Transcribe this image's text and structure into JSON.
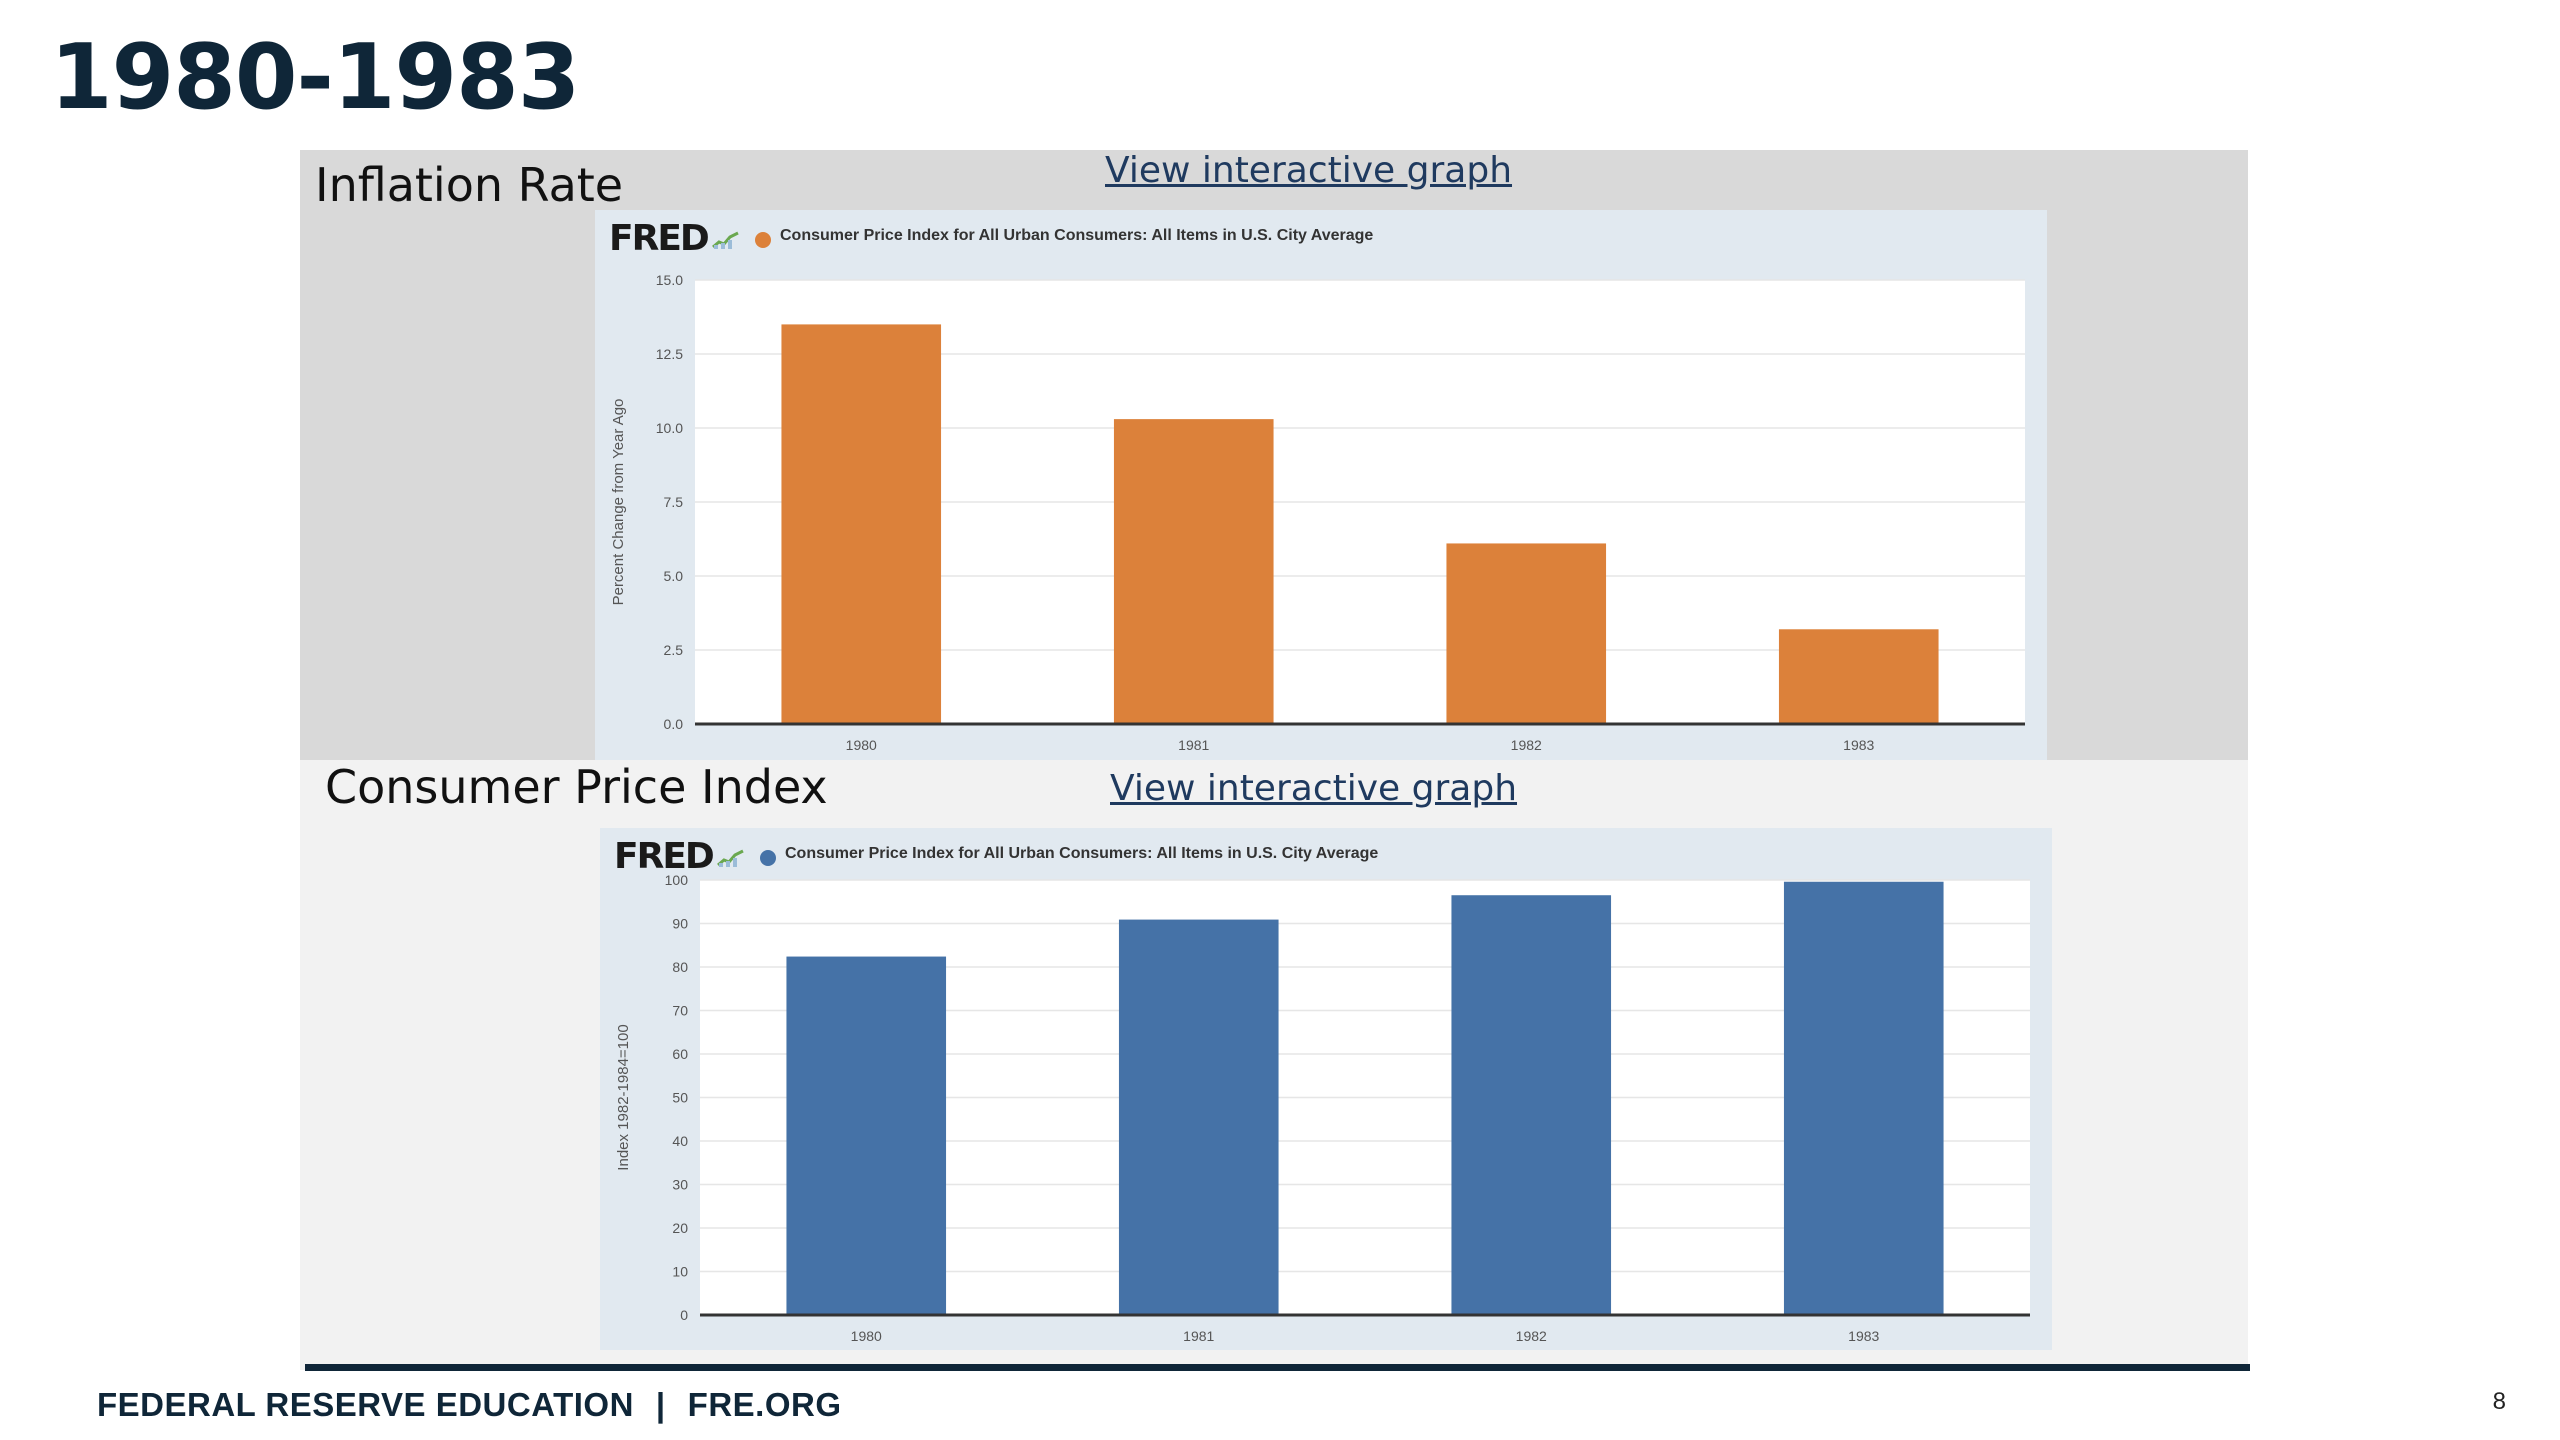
{
  "slide": {
    "title": "1980-1983",
    "page_number": "8"
  },
  "footer": {
    "org": "FEDERAL RESERVE EDUCATION",
    "separator": "|",
    "site": "FRE.ORG"
  },
  "panels": {
    "inflation": {
      "label": "Inflation Rate",
      "link": "View interactive graph"
    },
    "cpi": {
      "label": "Consumer Price Index",
      "link": "View interactive graph"
    }
  },
  "fred": {
    "logo": "FRED"
  },
  "colors": {
    "orange": "#dc813a",
    "blue": "#4572a7",
    "navy": "#0f2638"
  },
  "chart_data": [
    {
      "type": "bar",
      "title": "Consumer Price Index for All Urban Consumers: All Items in U.S. City Average",
      "ylabel": "Percent Change from Year Ago",
      "categories": [
        "1980",
        "1981",
        "1982",
        "1983"
      ],
      "values": [
        13.5,
        10.3,
        6.1,
        3.2
      ],
      "ylim": [
        0,
        15
      ],
      "yticks": [
        "0.0",
        "2.5",
        "5.0",
        "7.5",
        "10.0",
        "12.5",
        "15.0"
      ],
      "color": "#dc813a",
      "grid": true
    },
    {
      "type": "bar",
      "title": "Consumer Price Index for All Urban Consumers: All Items in U.S. City Average",
      "ylabel": "Index 1982-1984=100",
      "categories": [
        "1980",
        "1981",
        "1982",
        "1983"
      ],
      "values": [
        82.4,
        90.9,
        96.5,
        99.6
      ],
      "ylim": [
        0,
        100
      ],
      "yticks": [
        "0",
        "10",
        "20",
        "30",
        "40",
        "50",
        "60",
        "70",
        "80",
        "90",
        "100"
      ],
      "color": "#4572a7",
      "grid": true
    }
  ]
}
